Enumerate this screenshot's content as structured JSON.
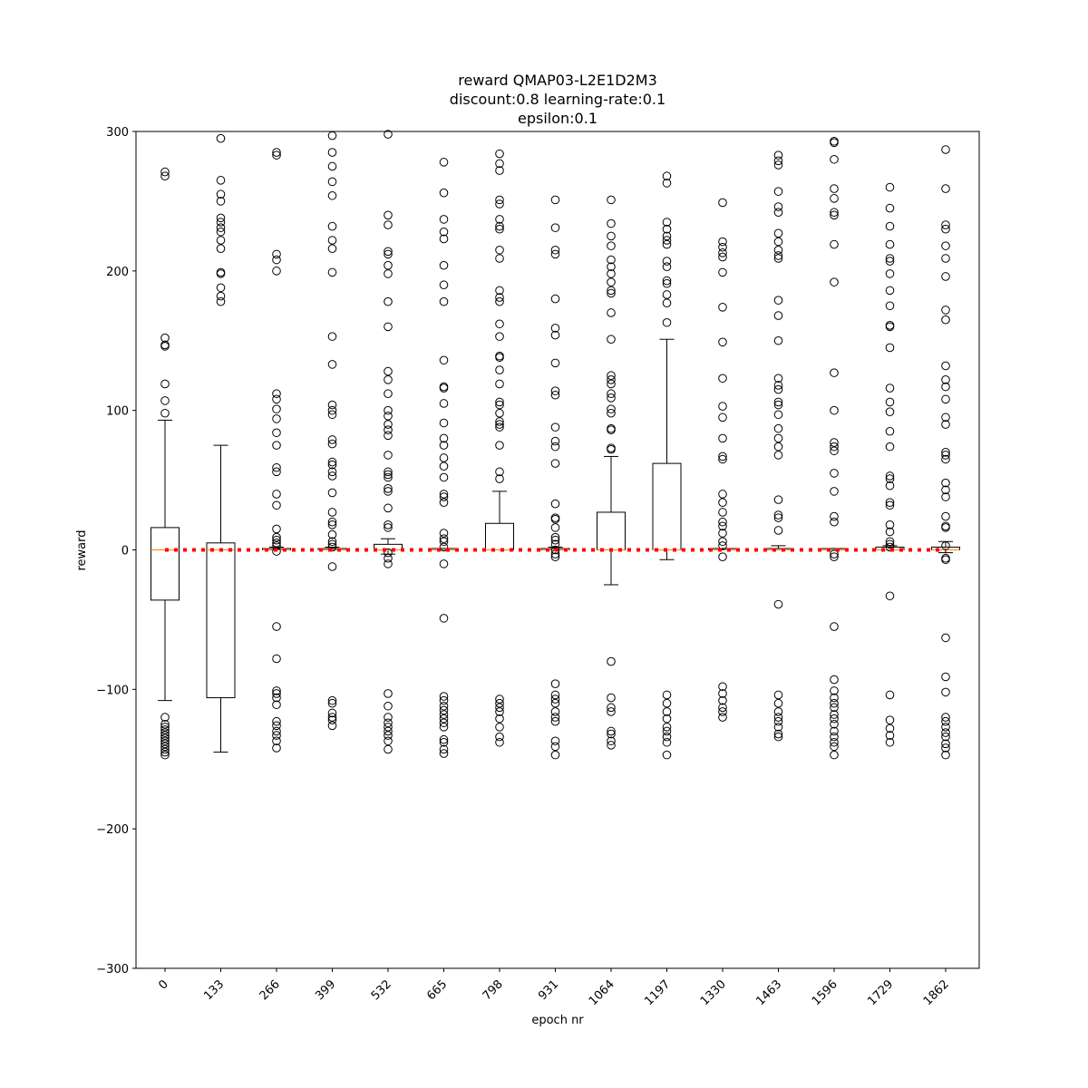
{
  "chart_data": {
    "type": "box",
    "title_lines": [
      "reward QMAP03-L2E1D2M3",
      "discount:0.8 learning-rate:0.1",
      "epsilon:0.1"
    ],
    "xlabel": "epoch nr",
    "ylabel": "reward",
    "ylim": [
      -300,
      300
    ],
    "yticks": [
      -300,
      -200,
      -100,
      0,
      100,
      200,
      300
    ],
    "categories": [
      "0",
      "133",
      "266",
      "399",
      "532",
      "665",
      "798",
      "931",
      "1064",
      "1197",
      "1330",
      "1463",
      "1596",
      "1729",
      "1862"
    ],
    "reference_line": {
      "y": 0,
      "style": "dotted",
      "color": "#ff0000"
    },
    "colors": {
      "box": "#000000",
      "median": "#ff7f0e",
      "reference": "#ff0000"
    },
    "boxes": [
      {
        "q1": -36,
        "median": 0,
        "q3": 16,
        "whisker_low": -108,
        "whisker_high": 93,
        "outliers": [
          271,
          268,
          152,
          147,
          146,
          119,
          107,
          98,
          -120,
          -125,
          -127,
          -129,
          -131,
          -133,
          -135,
          -137,
          -139,
          -141,
          -143,
          -145,
          -147
        ]
      },
      {
        "q1": -106,
        "median": 0,
        "q3": 5,
        "whisker_low": -145,
        "whisker_high": 75,
        "outliers": [
          295,
          265,
          255,
          250,
          238,
          235,
          231,
          228,
          222,
          216,
          199,
          198,
          188,
          182,
          178
        ]
      },
      {
        "q1": 0,
        "median": 0,
        "q3": 1,
        "whisker_low": 0,
        "whisker_high": 2,
        "outliers": [
          285,
          283,
          212,
          208,
          200,
          112,
          108,
          101,
          94,
          84,
          75,
          59,
          56,
          40,
          32,
          15,
          9,
          7,
          5,
          3,
          -1,
          -55,
          -78,
          -101,
          -103,
          -106,
          -111,
          -123,
          -126,
          -130,
          -133,
          -137,
          -142
        ]
      },
      {
        "q1": 0,
        "median": 0,
        "q3": 1,
        "whisker_low": 0,
        "whisker_high": 2,
        "outliers": [
          297,
          285,
          275,
          264,
          254,
          232,
          222,
          216,
          199,
          153,
          133,
          104,
          100,
          97,
          79,
          76,
          63,
          61,
          56,
          53,
          41,
          27,
          20,
          18,
          11,
          6,
          4,
          2,
          -12,
          -108,
          -110,
          -117,
          -120,
          -122,
          -126
        ]
      },
      {
        "q1": 0,
        "median": 0,
        "q3": 4,
        "whisker_low": -3,
        "whisker_high": 8,
        "outliers": [
          298,
          240,
          233,
          214,
          212,
          204,
          198,
          178,
          160,
          128,
          122,
          112,
          100,
          96,
          90,
          86,
          82,
          68,
          56,
          54,
          52,
          44,
          42,
          30,
          18,
          16,
          -2,
          -6,
          -10,
          -103,
          -112,
          -120,
          -124,
          -127,
          -130,
          -133,
          -137,
          -143
        ]
      },
      {
        "q1": 0,
        "median": 0,
        "q3": 1,
        "whisker_low": 0,
        "whisker_high": 1,
        "outliers": [
          278,
          256,
          237,
          228,
          223,
          204,
          190,
          178,
          136,
          117,
          116,
          105,
          91,
          80,
          75,
          66,
          60,
          52,
          40,
          38,
          34,
          12,
          8,
          6,
          2,
          -10,
          -49,
          -105,
          -108,
          -112,
          -115,
          -118,
          -121,
          -124,
          -127,
          -136,
          -138,
          -143,
          -146
        ]
      },
      {
        "q1": 0,
        "median": 0,
        "q3": 19,
        "whisker_low": 0,
        "whisker_high": 42,
        "outliers": [
          284,
          277,
          272,
          251,
          248,
          237,
          232,
          230,
          215,
          209,
          186,
          181,
          178,
          162,
          153,
          139,
          138,
          129,
          119,
          106,
          104,
          98,
          92,
          90,
          88,
          75,
          56,
          51,
          -107,
          -110,
          -113,
          -116,
          -121,
          -127,
          -134,
          -138
        ]
      },
      {
        "q1": 0,
        "median": 0,
        "q3": 1,
        "whisker_low": 0,
        "whisker_high": 2,
        "outliers": [
          251,
          231,
          215,
          212,
          180,
          159,
          154,
          134,
          114,
          111,
          88,
          78,
          74,
          62,
          33,
          23,
          22,
          16,
          9,
          7,
          4,
          0,
          -3,
          -5,
          -96,
          -104,
          -107,
          -110,
          -116,
          -120,
          -123,
          -137,
          -141,
          -147
        ]
      },
      {
        "q1": 0,
        "median": 0,
        "q3": 27,
        "whisker_low": -25,
        "whisker_high": 67,
        "outliers": [
          251,
          234,
          225,
          218,
          208,
          203,
          198,
          192,
          186,
          184,
          170,
          151,
          125,
          122,
          119,
          112,
          109,
          101,
          98,
          87,
          86,
          73,
          72,
          -80,
          -106,
          -113,
          -116,
          -130,
          -132,
          -137,
          -140
        ]
      },
      {
        "q1": 0,
        "median": 0,
        "q3": 62,
        "whisker_low": -7,
        "whisker_high": 151,
        "outliers": [
          268,
          263,
          235,
          230,
          225,
          222,
          219,
          207,
          203,
          193,
          191,
          183,
          177,
          163,
          -104,
          -110,
          -116,
          -121,
          -127,
          -130,
          -134,
          -138,
          -147
        ]
      },
      {
        "q1": 0,
        "median": 0,
        "q3": 1,
        "whisker_low": 0,
        "whisker_high": 1,
        "outliers": [
          249,
          221,
          217,
          213,
          210,
          199,
          174,
          149,
          123,
          103,
          95,
          80,
          67,
          65,
          40,
          34,
          27,
          20,
          17,
          12,
          6,
          3,
          -5,
          -98,
          -103,
          -108,
          -113,
          -116,
          -120
        ]
      },
      {
        "q1": 0,
        "median": 0,
        "q3": 1,
        "whisker_low": 0,
        "whisker_high": 3,
        "outliers": [
          283,
          279,
          276,
          257,
          246,
          242,
          227,
          221,
          215,
          211,
          209,
          179,
          168,
          150,
          123,
          118,
          115,
          106,
          104,
          97,
          87,
          80,
          74,
          68,
          36,
          25,
          23,
          14,
          -39,
          -104,
          -110,
          -116,
          -120,
          -123,
          -127,
          -132,
          -134
        ]
      },
      {
        "q1": 0,
        "median": 0,
        "q3": 1,
        "whisker_low": 0,
        "whisker_high": 1,
        "outliers": [
          293,
          292,
          280,
          259,
          252,
          242,
          240,
          219,
          192,
          127,
          100,
          77,
          74,
          71,
          55,
          42,
          24,
          20,
          -3,
          -5,
          -55,
          -93,
          -101,
          -106,
          -110,
          -113,
          -118,
          -121,
          -125,
          -130,
          -134,
          -138,
          -141,
          -147
        ]
      },
      {
        "q1": 0,
        "median": 0,
        "q3": 2,
        "whisker_low": 0,
        "whisker_high": 3,
        "outliers": [
          260,
          245,
          232,
          219,
          209,
          207,
          198,
          186,
          175,
          161,
          160,
          145,
          116,
          106,
          99,
          85,
          74,
          53,
          51,
          46,
          34,
          32,
          18,
          13,
          6,
          4,
          2,
          -33,
          -104,
          -122,
          -128,
          -133,
          -138
        ]
      },
      {
        "q1": 0,
        "median": 0,
        "q3": 2,
        "whisker_low": -2,
        "whisker_high": 6,
        "outliers": [
          287,
          259,
          233,
          230,
          218,
          209,
          196,
          172,
          165,
          132,
          122,
          117,
          108,
          95,
          90,
          70,
          68,
          65,
          48,
          43,
          38,
          24,
          17,
          16,
          3,
          -6,
          -7,
          -63,
          -91,
          -102,
          -120,
          -123,
          -127,
          -131,
          -134,
          -139,
          -142,
          -147
        ]
      }
    ]
  }
}
